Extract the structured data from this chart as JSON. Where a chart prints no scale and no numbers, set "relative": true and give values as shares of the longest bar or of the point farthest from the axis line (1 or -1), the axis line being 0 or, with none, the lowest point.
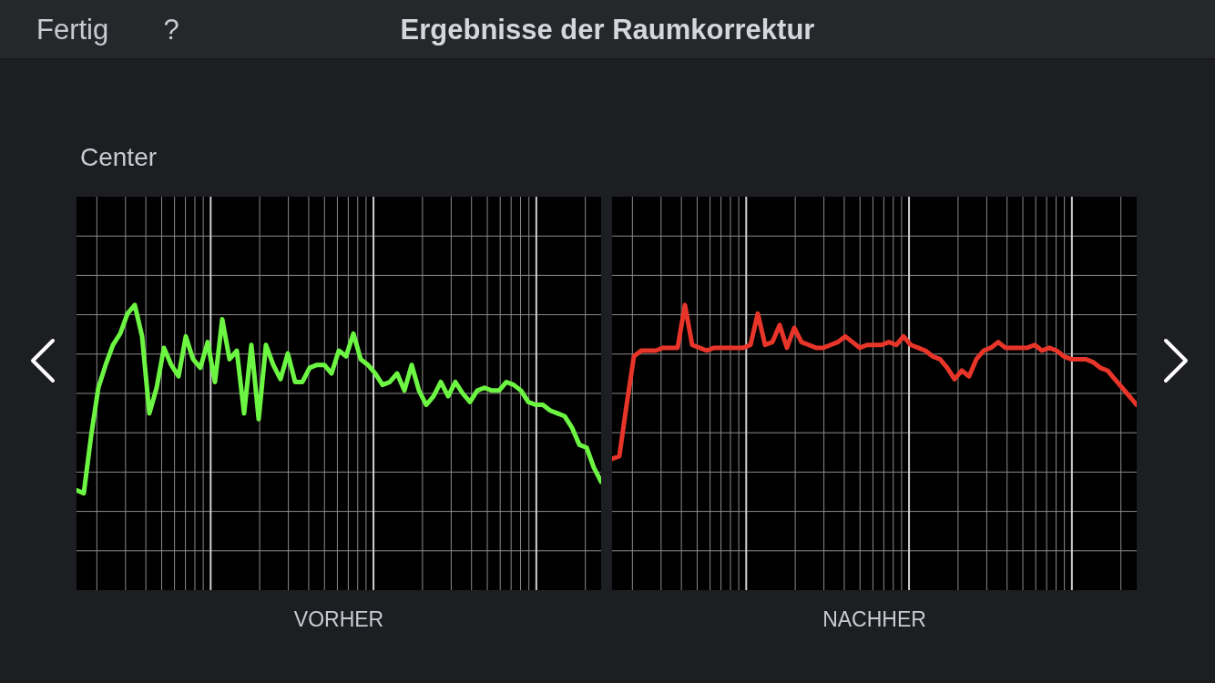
{
  "chart_data": [
    {
      "type": "line",
      "title": "Ergebnisse der Raumkorrektur",
      "subtitle": "Center",
      "annotations": [
        "Fertig",
        "?"
      ],
      "xlabel": "VORHER",
      "relative": true,
      "grid": true,
      "categories": [
        null,
        null,
        null,
        null,
        null,
        null,
        null,
        null,
        null,
        null,
        null,
        null,
        null,
        null,
        null,
        null,
        null,
        null,
        null,
        null,
        null,
        null,
        null,
        null,
        null,
        null,
        null,
        null,
        null,
        null,
        null,
        null,
        null,
        null,
        null,
        null,
        null,
        null,
        null,
        null,
        null,
        null,
        null,
        null,
        null,
        null,
        null,
        null,
        null,
        null,
        null,
        null,
        null,
        null,
        null,
        null,
        null,
        null,
        null,
        null,
        null,
        null,
        null,
        null,
        null,
        null,
        null,
        null,
        null,
        null,
        null,
        null,
        null
      ],
      "series": [
        {
          "color": "#6cf542",
          "values": [
            0.35,
            0.34,
            0.54,
            0.71,
            0.79,
            0.86,
            0.9,
            0.97,
            1,
            0.89,
            0.62,
            0.71,
            0.85,
            0.79,
            0.75,
            0.89,
            0.81,
            0.78,
            0.87,
            0.73,
            0.95,
            0.81,
            0.84,
            0.62,
            0.86,
            0.6,
            0.86,
            0.79,
            0.74,
            0.83,
            0.73,
            0.73,
            0.78,
            0.79,
            0.79,
            0.76,
            0.84,
            0.82,
            0.9,
            0.81,
            0.79,
            0.76,
            0.72,
            0.73,
            0.76,
            0.7,
            0.79,
            0.7,
            0.65,
            0.68,
            0.73,
            0.68,
            0.73,
            0.69,
            0.66,
            0.7,
            0.71,
            0.7,
            0.7,
            0.73,
            0.72,
            0.7,
            0.66,
            0.65,
            0.65,
            0.63,
            0.62,
            0.61,
            0.57,
            0.51,
            0.5,
            0.43,
            0.38
          ]
        }
      ]
    },
    {
      "type": "line",
      "xlabel": "NACHHER",
      "relative": true,
      "grid": true,
      "categories": [
        null,
        null,
        null,
        null,
        null,
        null,
        null,
        null,
        null,
        null,
        null,
        null,
        null,
        null,
        null,
        null,
        null,
        null,
        null,
        null,
        null,
        null,
        null,
        null,
        null,
        null,
        null,
        null,
        null,
        null,
        null,
        null,
        null,
        null,
        null,
        null,
        null,
        null,
        null,
        null,
        null,
        null,
        null,
        null,
        null,
        null,
        null,
        null,
        null,
        null,
        null,
        null,
        null,
        null,
        null,
        null,
        null,
        null,
        null,
        null,
        null,
        null,
        null,
        null,
        null,
        null,
        null,
        null,
        null,
        null,
        null,
        null,
        null
      ],
      "series": [
        {
          "color": "#e8352a",
          "values": [
            0.46,
            0.47,
            0.65,
            0.82,
            0.84,
            0.84,
            0.84,
            0.85,
            0.85,
            0.85,
            1,
            0.86,
            0.85,
            0.84,
            0.85,
            0.85,
            0.85,
            0.85,
            0.85,
            0.86,
            0.97,
            0.86,
            0.87,
            0.93,
            0.85,
            0.92,
            0.87,
            0.86,
            0.85,
            0.85,
            0.86,
            0.87,
            0.89,
            0.87,
            0.85,
            0.86,
            0.86,
            0.86,
            0.87,
            0.86,
            0.89,
            0.86,
            0.85,
            0.84,
            0.82,
            0.81,
            0.78,
            0.74,
            0.77,
            0.75,
            0.81,
            0.84,
            0.85,
            0.87,
            0.85,
            0.85,
            0.85,
            0.85,
            0.86,
            0.84,
            0.85,
            0.84,
            0.82,
            0.81,
            0.81,
            0.81,
            0.8,
            0.78,
            0.77,
            0.74,
            0.71,
            0.68,
            0.65
          ]
        }
      ]
    }
  ]
}
